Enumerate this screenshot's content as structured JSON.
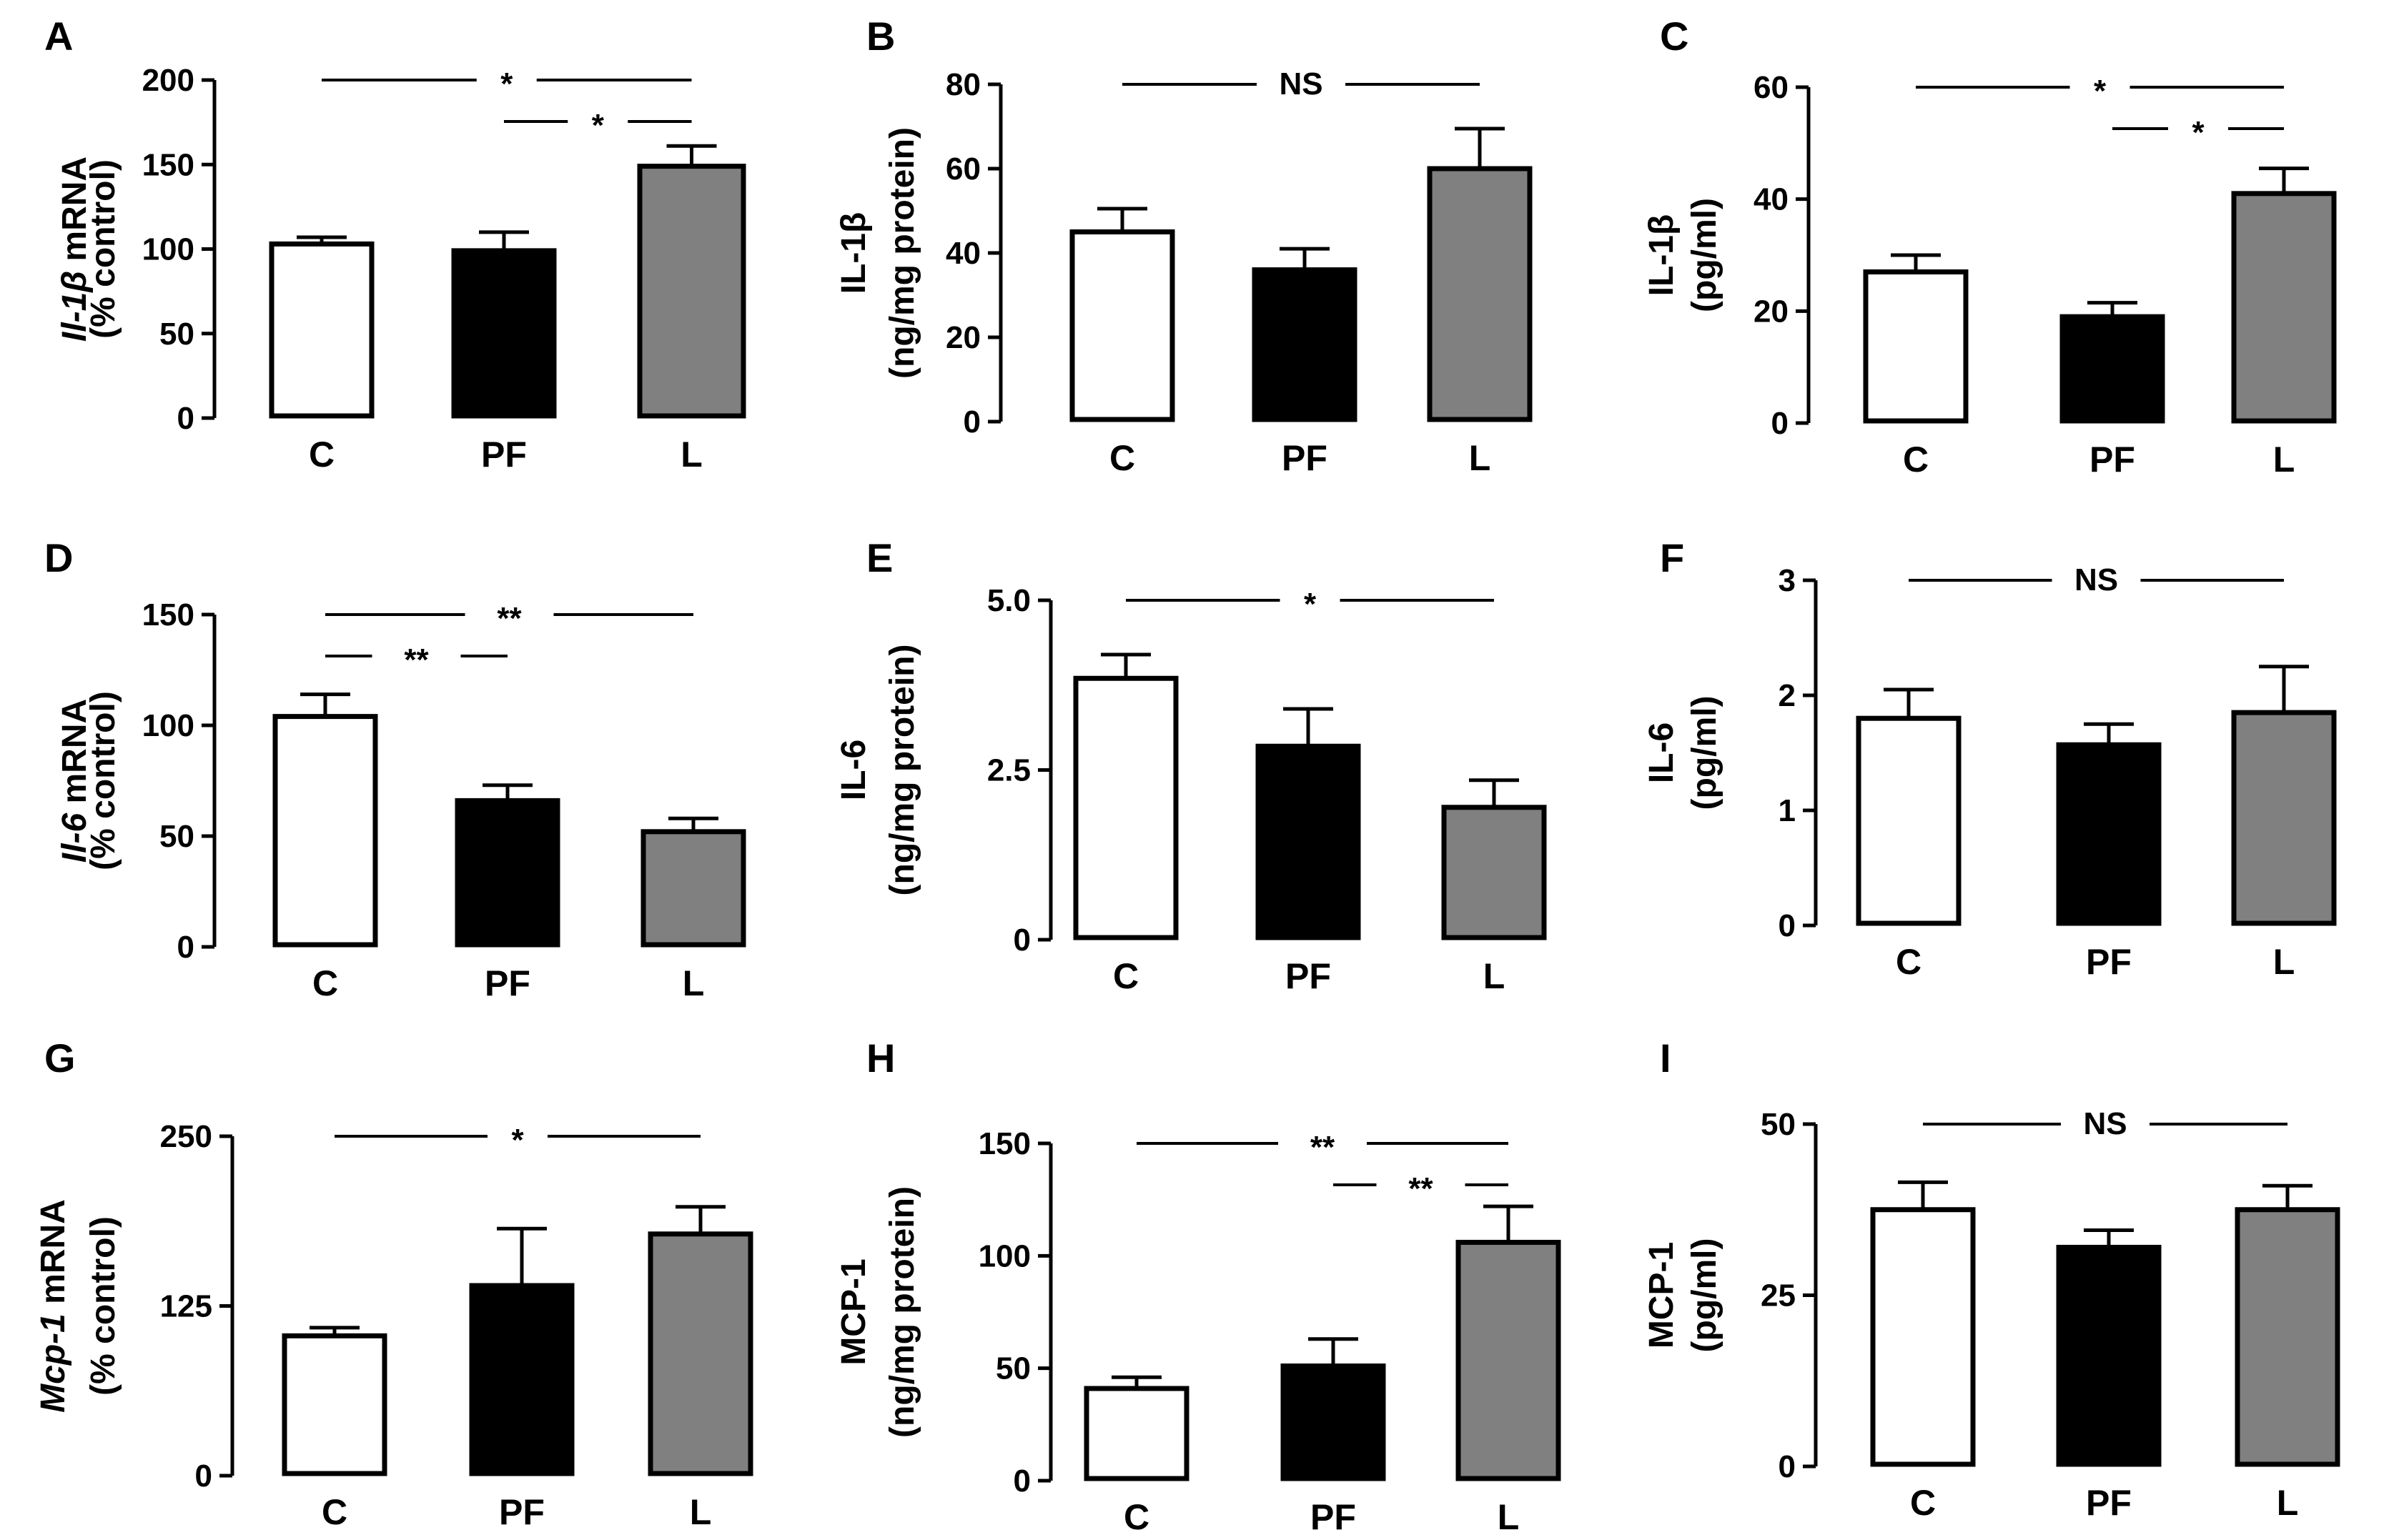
{
  "colors": {
    "C": "#ffffff",
    "PF": "#000000",
    "L": "#808080",
    "axis": "#000000"
  },
  "chart_data": [
    {
      "type": "bar",
      "panel": "A",
      "categories": [
        "C",
        "PF",
        "L"
      ],
      "values": [
        103,
        99,
        149
      ],
      "errors": [
        4,
        11,
        12
      ],
      "ylabel": [
        [
          "Il-1β",
          true
        ],
        [
          " mRNA",
          false
        ]
      ],
      "ylabel2": "(% control)",
      "ylim": [
        0,
        200
      ],
      "yticks": [
        0,
        50,
        100,
        150,
        200
      ],
      "yticklabels": [
        "0",
        "50",
        "100",
        "150",
        "200"
      ],
      "significance": [
        {
          "from": 0,
          "to": 2,
          "label": "*"
        },
        {
          "from": 1,
          "to": 2,
          "label": "*"
        }
      ]
    },
    {
      "type": "bar",
      "panel": "B",
      "categories": [
        "C",
        "PF",
        "L"
      ],
      "values": [
        45,
        36,
        60
      ],
      "errors": [
        5.5,
        5,
        9.5
      ],
      "ylabel": [
        [
          "IL-1β",
          false
        ]
      ],
      "ylabel2": "(ng/mg protein)",
      "ylim": [
        0,
        80
      ],
      "yticks": [
        0,
        20,
        40,
        60,
        80
      ],
      "yticklabels": [
        "0",
        "20",
        "40",
        "60",
        "80"
      ],
      "significance": [
        {
          "from": 0,
          "to": 2,
          "label": "NS"
        }
      ]
    },
    {
      "type": "bar",
      "panel": "C",
      "categories": [
        "C",
        "PF",
        "L"
      ],
      "values": [
        27,
        19,
        41
      ],
      "errors": [
        3,
        2.5,
        4.5
      ],
      "ylabel": [
        [
          "IL-1β",
          false
        ]
      ],
      "ylabel2": "(pg/ml)",
      "ylim": [
        0,
        60
      ],
      "yticks": [
        0,
        20,
        40,
        60
      ],
      "yticklabels": [
        "0",
        "20",
        "40",
        "60"
      ],
      "significance": [
        {
          "from": 0,
          "to": 2,
          "label": "*"
        },
        {
          "from": 1,
          "to": 2,
          "label": "*"
        }
      ]
    },
    {
      "type": "bar",
      "panel": "D",
      "categories": [
        "C",
        "PF",
        "L"
      ],
      "values": [
        104,
        66,
        52
      ],
      "errors": [
        10,
        7,
        6
      ],
      "ylabel": [
        [
          "Il-6",
          true
        ],
        [
          " mRNA",
          false
        ]
      ],
      "ylabel2": "(% control)",
      "ylim": [
        0,
        150
      ],
      "yticks": [
        0,
        50,
        100,
        150
      ],
      "yticklabels": [
        "0",
        "50",
        "100",
        "150"
      ],
      "significance": [
        {
          "from": 0,
          "to": 2,
          "label": "**"
        },
        {
          "from": 0,
          "to": 1,
          "label": "**"
        }
      ]
    },
    {
      "type": "bar",
      "panel": "E",
      "categories": [
        "C",
        "PF",
        "L"
      ],
      "values": [
        3.85,
        2.85,
        1.95
      ],
      "errors": [
        0.35,
        0.55,
        0.4
      ],
      "ylabel": [
        [
          "IL-6",
          false
        ]
      ],
      "ylabel2": "(ng/mg protein)",
      "ylim": [
        0,
        5
      ],
      "yticks": [
        0,
        2.5,
        5
      ],
      "yticklabels": [
        "0",
        "2.5",
        "5.0"
      ],
      "significance": [
        {
          "from": 0,
          "to": 2,
          "label": "*"
        }
      ]
    },
    {
      "type": "bar",
      "panel": "F",
      "categories": [
        "C",
        "PF",
        "L"
      ],
      "values": [
        1.8,
        1.57,
        1.85
      ],
      "errors": [
        0.25,
        0.18,
        0.4
      ],
      "ylabel": [
        [
          "IL-6",
          false
        ]
      ],
      "ylabel2": "(pg/ml)",
      "ylim": [
        0,
        3
      ],
      "yticks": [
        0,
        1,
        2,
        3
      ],
      "yticklabels": [
        "0",
        "1",
        "2",
        "3"
      ],
      "significance": [
        {
          "from": 0,
          "to": 2,
          "label": "NS"
        }
      ]
    },
    {
      "type": "bar",
      "panel": "G",
      "categories": [
        "C",
        "PF",
        "L"
      ],
      "values": [
        103,
        140,
        178
      ],
      "errors": [
        6,
        42,
        20
      ],
      "ylabel": [
        [
          "Mcp-1",
          true
        ],
        [
          " mRNA",
          false
        ]
      ],
      "ylabel2": "(% control)",
      "ylim": [
        0,
        250
      ],
      "yticks": [
        0,
        125,
        250
      ],
      "yticklabels": [
        "0",
        "125",
        "250"
      ],
      "significance": [
        {
          "from": 0,
          "to": 2,
          "label": "*"
        }
      ]
    },
    {
      "type": "bar",
      "panel": "H",
      "categories": [
        "C",
        "PF",
        "L"
      ],
      "values": [
        41,
        51,
        106
      ],
      "errors": [
        5,
        12,
        16
      ],
      "ylabel": [
        [
          "MCP-1",
          false
        ]
      ],
      "ylabel2": "(ng/mg protein)",
      "ylim": [
        0,
        150
      ],
      "yticks": [
        0,
        50,
        100,
        150
      ],
      "yticklabels": [
        "0",
        "50",
        "100",
        "150"
      ],
      "significance": [
        {
          "from": 0,
          "to": 2,
          "label": "**"
        },
        {
          "from": 1,
          "to": 2,
          "label": "**"
        }
      ]
    },
    {
      "type": "bar",
      "panel": "I",
      "categories": [
        "C",
        "PF",
        "L"
      ],
      "values": [
        37.5,
        32,
        37.5
      ],
      "errors": [
        4,
        2.5,
        3.5
      ],
      "ylabel": [
        [
          "MCP-1",
          false
        ]
      ],
      "ylabel2": "(pg/ml)",
      "ylim": [
        0,
        50
      ],
      "yticks": [
        0,
        25,
        50
      ],
      "yticklabels": [
        "0",
        "25",
        "50"
      ],
      "significance": [
        {
          "from": 0,
          "to": 2,
          "label": "NS"
        }
      ]
    }
  ]
}
